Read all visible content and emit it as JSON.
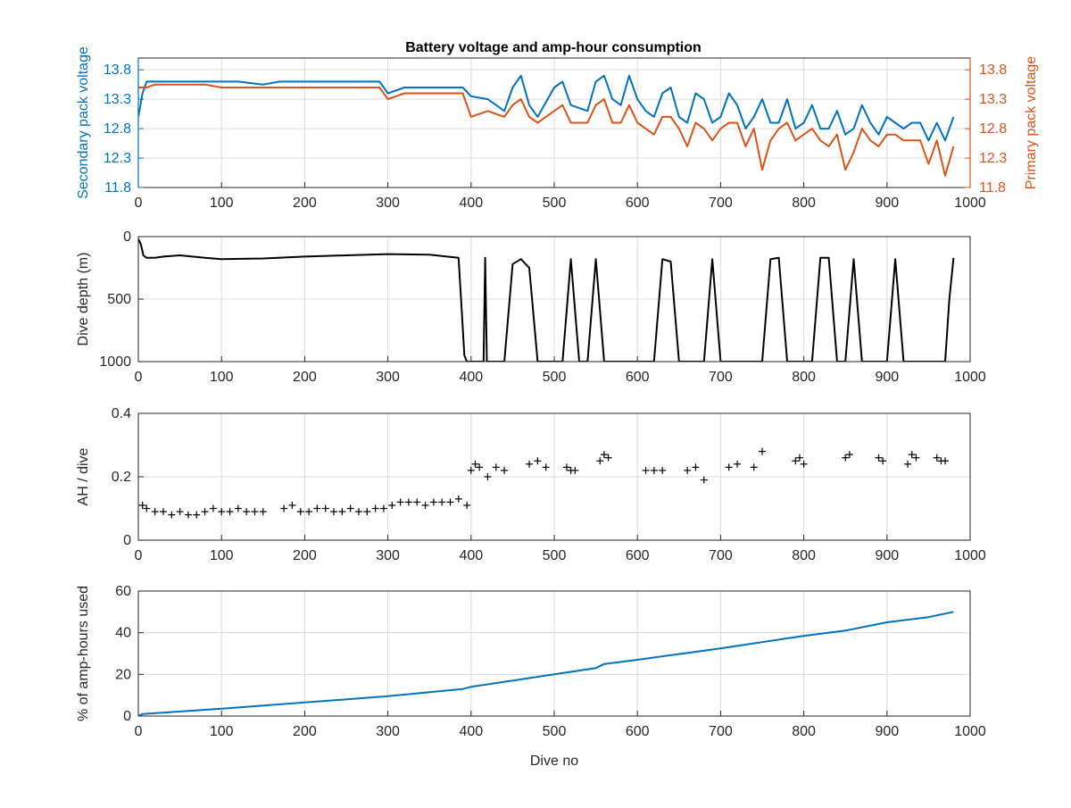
{
  "figure": {
    "title": "Battery voltage and amp-hour consumption"
  },
  "chart_data": [
    {
      "type": "line",
      "title": "Battery voltage and amp-hour consumption",
      "xlabel": "",
      "ylabel_left": "Secondary pack voltage",
      "ylabel_right": "Primary pack voltage",
      "xlim": [
        0,
        1000
      ],
      "ylim": [
        11.8,
        14.0
      ],
      "xticks": [
        0,
        100,
        200,
        300,
        400,
        500,
        600,
        700,
        800,
        900,
        1000
      ],
      "yticks": [
        11.8,
        12.3,
        12.8,
        13.3,
        13.8
      ],
      "grid": true,
      "colors": {
        "left": "#0072BD",
        "right": "#D95319"
      },
      "series": [
        {
          "name": "Secondary pack voltage",
          "axis": "left",
          "color": "#0072BD",
          "x": [
            0,
            5,
            10,
            20,
            40,
            60,
            80,
            100,
            120,
            150,
            170,
            200,
            230,
            260,
            290,
            300,
            320,
            350,
            380,
            390,
            400,
            420,
            440,
            450,
            460,
            470,
            480,
            500,
            510,
            520,
            540,
            550,
            560,
            570,
            580,
            590,
            600,
            610,
            620,
            630,
            640,
            650,
            660,
            670,
            680,
            690,
            700,
            710,
            720,
            730,
            740,
            750,
            760,
            770,
            780,
            790,
            800,
            810,
            820,
            830,
            840,
            850,
            860,
            870,
            880,
            890,
            900,
            910,
            920,
            930,
            940,
            950,
            960,
            970,
            980
          ],
          "y": [
            13.0,
            13.4,
            13.6,
            13.6,
            13.6,
            13.6,
            13.6,
            13.6,
            13.6,
            13.55,
            13.6,
            13.6,
            13.6,
            13.6,
            13.6,
            13.4,
            13.5,
            13.5,
            13.5,
            13.5,
            13.35,
            13.3,
            13.1,
            13.5,
            13.7,
            13.2,
            13.0,
            13.5,
            13.6,
            13.2,
            13.1,
            13.6,
            13.7,
            13.3,
            13.2,
            13.7,
            13.3,
            13.1,
            13.0,
            13.4,
            13.5,
            13.0,
            12.9,
            13.4,
            13.3,
            12.9,
            13.0,
            13.4,
            13.2,
            12.8,
            13.0,
            13.3,
            12.9,
            12.9,
            13.3,
            12.8,
            12.9,
            13.2,
            12.8,
            12.8,
            13.1,
            12.7,
            12.8,
            13.2,
            12.9,
            12.7,
            13.0,
            12.9,
            12.8,
            12.9,
            12.9,
            12.6,
            12.9,
            12.6,
            13.0
          ]
        },
        {
          "name": "Primary pack voltage",
          "axis": "right",
          "color": "#D95319",
          "x": [
            0,
            5,
            10,
            20,
            40,
            60,
            80,
            100,
            120,
            150,
            170,
            200,
            230,
            260,
            290,
            300,
            320,
            350,
            380,
            390,
            400,
            420,
            440,
            450,
            460,
            470,
            480,
            500,
            510,
            520,
            540,
            550,
            560,
            570,
            580,
            590,
            600,
            610,
            620,
            630,
            640,
            650,
            660,
            670,
            680,
            690,
            700,
            710,
            720,
            730,
            740,
            750,
            760,
            770,
            780,
            790,
            800,
            810,
            820,
            830,
            840,
            850,
            860,
            870,
            880,
            890,
            900,
            910,
            920,
            930,
            940,
            950,
            960,
            970,
            980
          ],
          "y": [
            13.5,
            13.5,
            13.5,
            13.55,
            13.55,
            13.55,
            13.55,
            13.5,
            13.5,
            13.5,
            13.5,
            13.5,
            13.5,
            13.5,
            13.5,
            13.3,
            13.4,
            13.4,
            13.4,
            13.4,
            13.0,
            13.1,
            13.0,
            13.2,
            13.3,
            13.0,
            12.9,
            13.1,
            13.2,
            12.9,
            12.9,
            13.2,
            13.3,
            12.9,
            12.9,
            13.2,
            12.9,
            12.8,
            12.7,
            13.0,
            13.0,
            12.8,
            12.5,
            12.9,
            12.8,
            12.6,
            12.8,
            12.9,
            12.9,
            12.5,
            12.8,
            12.1,
            12.6,
            12.8,
            12.9,
            12.6,
            12.7,
            12.8,
            12.6,
            12.5,
            12.7,
            12.1,
            12.4,
            12.8,
            12.6,
            12.5,
            12.7,
            12.7,
            12.6,
            12.6,
            12.6,
            12.2,
            12.6,
            12.0,
            12.5
          ]
        }
      ]
    },
    {
      "type": "line",
      "title": "",
      "xlabel": "",
      "ylabel": "Dive depth (m)",
      "xlim": [
        0,
        1000
      ],
      "ylim": [
        0,
        1000
      ],
      "y_reversed": true,
      "xticks": [
        0,
        100,
        200,
        300,
        400,
        500,
        600,
        700,
        800,
        900,
        1000
      ],
      "yticks": [
        0,
        500,
        1000
      ],
      "grid": true,
      "series": [
        {
          "color": "#000000",
          "x": [
            0,
            3,
            6,
            10,
            20,
            30,
            50,
            80,
            100,
            150,
            200,
            250,
            300,
            350,
            385,
            388,
            392,
            395,
            400,
            415,
            417,
            419,
            421,
            423,
            430,
            440,
            450,
            460,
            470,
            480,
            490,
            500,
            510,
            520,
            530,
            540,
            550,
            560,
            570,
            580,
            590,
            600,
            610,
            620,
            630,
            640,
            650,
            660,
            670,
            680,
            690,
            700,
            710,
            720,
            730,
            740,
            750,
            760,
            770,
            780,
            790,
            800,
            810,
            820,
            830,
            840,
            850,
            860,
            870,
            880,
            890,
            900,
            910,
            920,
            930,
            940,
            950,
            960,
            970,
            975,
            980
          ],
          "y": [
            20,
            60,
            150,
            170,
            170,
            160,
            150,
            170,
            180,
            175,
            160,
            150,
            140,
            145,
            170,
            500,
            950,
            1000,
            1000,
            1000,
            170,
            1000,
            1000,
            1000,
            1000,
            1000,
            220,
            180,
            250,
            1000,
            1000,
            1000,
            1000,
            180,
            1000,
            1000,
            180,
            1000,
            1000,
            1000,
            1000,
            1000,
            1000,
            1000,
            180,
            200,
            1000,
            1000,
            1000,
            1000,
            180,
            1000,
            1000,
            1000,
            1000,
            1000,
            1000,
            180,
            170,
            1000,
            1000,
            1000,
            1000,
            170,
            170,
            1000,
            1000,
            180,
            1000,
            1000,
            1000,
            1000,
            180,
            1000,
            1000,
            1000,
            1000,
            1000,
            1000,
            500,
            170
          ]
        }
      ]
    },
    {
      "type": "scatter",
      "title": "",
      "xlabel": "",
      "ylabel": "AH / dive",
      "xlim": [
        0,
        1000
      ],
      "ylim": [
        0,
        0.4
      ],
      "xticks": [
        0,
        100,
        200,
        300,
        400,
        500,
        600,
        700,
        800,
        900,
        1000
      ],
      "yticks": [
        0,
        0.2,
        0.4
      ],
      "grid": true,
      "series": [
        {
          "color": "#000000",
          "x": [
            5,
            10,
            20,
            30,
            40,
            50,
            60,
            70,
            80,
            90,
            100,
            110,
            120,
            130,
            140,
            150,
            175,
            185,
            195,
            205,
            215,
            225,
            235,
            245,
            255,
            265,
            275,
            285,
            295,
            305,
            315,
            325,
            335,
            345,
            355,
            365,
            375,
            385,
            395,
            400,
            405,
            410,
            420,
            430,
            440,
            470,
            480,
            490,
            515,
            520,
            525,
            555,
            560,
            565,
            610,
            620,
            630,
            660,
            670,
            680,
            710,
            720,
            740,
            750,
            790,
            795,
            800,
            850,
            855,
            890,
            895,
            925,
            930,
            935,
            960,
            965,
            970
          ],
          "y": [
            0.11,
            0.1,
            0.09,
            0.09,
            0.08,
            0.09,
            0.08,
            0.08,
            0.09,
            0.1,
            0.09,
            0.09,
            0.1,
            0.09,
            0.09,
            0.09,
            0.1,
            0.11,
            0.09,
            0.09,
            0.1,
            0.1,
            0.09,
            0.09,
            0.1,
            0.09,
            0.09,
            0.1,
            0.1,
            0.11,
            0.12,
            0.12,
            0.12,
            0.11,
            0.12,
            0.12,
            0.12,
            0.13,
            0.11,
            0.22,
            0.24,
            0.23,
            0.2,
            0.23,
            0.22,
            0.24,
            0.25,
            0.23,
            0.23,
            0.22,
            0.22,
            0.25,
            0.27,
            0.26,
            0.22,
            0.22,
            0.22,
            0.22,
            0.23,
            0.19,
            0.23,
            0.24,
            0.23,
            0.28,
            0.25,
            0.26,
            0.24,
            0.26,
            0.27,
            0.26,
            0.25,
            0.24,
            0.27,
            0.26,
            0.26,
            0.25,
            0.25
          ]
        }
      ]
    },
    {
      "type": "line",
      "title": "",
      "xlabel": "Dive no",
      "ylabel": "% of amp-hours used",
      "xlim": [
        0,
        1000
      ],
      "ylim": [
        0,
        60
      ],
      "xticks": [
        0,
        100,
        200,
        300,
        400,
        500,
        600,
        700,
        800,
        900,
        1000
      ],
      "yticks": [
        0,
        20,
        40,
        60
      ],
      "grid": true,
      "series": [
        {
          "color": "#0072BD",
          "x": [
            0,
            5,
            100,
            200,
            300,
            390,
            400,
            500,
            550,
            560,
            600,
            700,
            800,
            850,
            900,
            950,
            980
          ],
          "y": [
            0,
            1,
            3.5,
            6.5,
            9.5,
            13,
            14,
            20,
            23,
            25,
            27,
            32.5,
            38.5,
            41,
            45,
            47.5,
            50
          ]
        }
      ]
    }
  ]
}
